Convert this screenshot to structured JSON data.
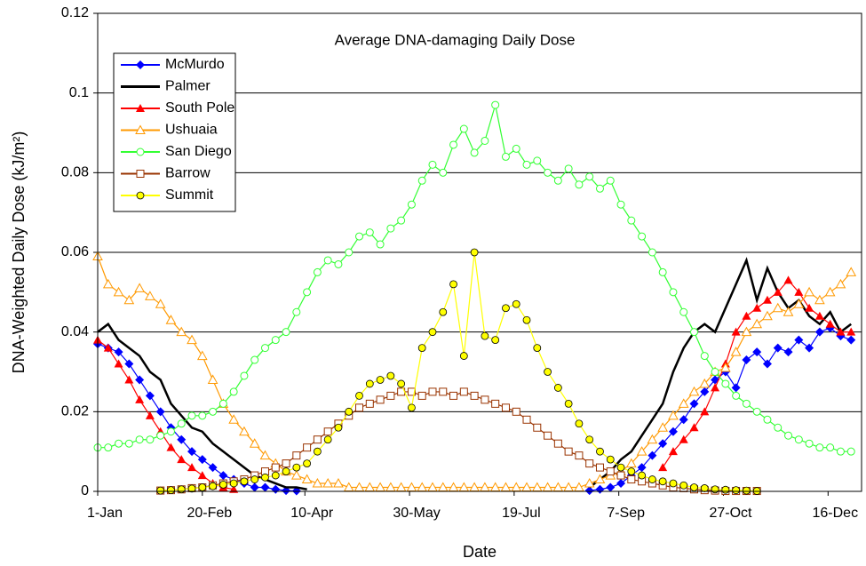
{
  "chart_data": {
    "type": "line",
    "title": "Average DNA-damaging Daily Dose",
    "x_label": "Date",
    "y_label": "DNA-Weighted Daily Dose (kJ/m²)",
    "x": [
      1,
      6,
      11,
      16,
      21,
      26,
      31,
      36,
      41,
      46,
      51,
      56,
      61,
      66,
      71,
      76,
      81,
      86,
      91,
      96,
      101,
      106,
      111,
      116,
      121,
      126,
      131,
      136,
      141,
      146,
      151,
      156,
      161,
      166,
      171,
      176,
      181,
      186,
      191,
      196,
      201,
      206,
      211,
      216,
      221,
      226,
      231,
      236,
      241,
      246,
      251,
      256,
      261,
      266,
      271,
      276,
      281,
      286,
      291,
      296,
      301,
      306,
      311,
      316,
      321,
      326,
      331,
      336,
      341,
      346,
      351,
      356,
      361
    ],
    "xlim": [
      1,
      366
    ],
    "xticks": [
      {
        "value": 1,
        "label": "1-Jan"
      },
      {
        "value": 51,
        "label": "20-Feb"
      },
      {
        "value": 100,
        "label": "10-Apr"
      },
      {
        "value": 150,
        "label": "30-May"
      },
      {
        "value": 200,
        "label": "19-Jul"
      },
      {
        "value": 250,
        "label": "7-Sep"
      },
      {
        "value": 300,
        "label": "27-Oct"
      },
      {
        "value": 350,
        "label": "16-Dec"
      }
    ],
    "ylim": [
      0,
      0.12
    ],
    "yticks": [
      0,
      0.02,
      0.04,
      0.06,
      0.08,
      0.1,
      0.12
    ],
    "grid": true,
    "legend": "upper left",
    "series": [
      {
        "name": "McMurdo",
        "color": "#0000ff",
        "marker": "diamond",
        "values": [
          0.037,
          0.036,
          0.035,
          0.032,
          0.028,
          0.024,
          0.02,
          0.016,
          0.013,
          0.01,
          0.008,
          0.006,
          0.004,
          0.003,
          0.002,
          0.001,
          0.001,
          0.0005,
          0.0002,
          0.0001,
          null,
          null,
          null,
          null,
          null,
          null,
          null,
          null,
          null,
          null,
          null,
          null,
          null,
          null,
          null,
          null,
          null,
          null,
          null,
          null,
          null,
          null,
          null,
          null,
          null,
          null,
          null,
          0.0002,
          0.0005,
          0.001,
          0.002,
          0.004,
          0.006,
          0.009,
          0.012,
          0.015,
          0.018,
          0.022,
          0.025,
          0.028,
          0.03,
          0.026,
          0.033,
          0.035,
          0.032,
          0.036,
          0.035,
          0.038,
          0.036,
          0.04,
          0.041,
          0.039,
          0.038
        ]
      },
      {
        "name": "Palmer",
        "color": "#000000",
        "marker": "none",
        "values": [
          0.04,
          0.042,
          0.038,
          0.036,
          0.034,
          0.03,
          0.028,
          0.022,
          0.019,
          0.016,
          0.015,
          0.012,
          0.01,
          0.008,
          0.006,
          0.004,
          0.003,
          0.002,
          0.001,
          0.001,
          0.0005,
          null,
          null,
          null,
          null,
          null,
          null,
          null,
          null,
          null,
          null,
          null,
          null,
          null,
          null,
          null,
          null,
          null,
          null,
          null,
          null,
          null,
          null,
          null,
          null,
          null,
          null,
          0.001,
          0.003,
          0.005,
          0.008,
          0.01,
          0.014,
          0.018,
          0.022,
          0.03,
          0.036,
          0.04,
          0.042,
          0.04,
          0.046,
          0.052,
          0.058,
          0.048,
          0.056,
          0.05,
          0.046,
          0.048,
          0.044,
          0.042,
          0.045,
          0.04,
          0.042
        ]
      },
      {
        "name": "South Pole",
        "color": "#ff0000",
        "marker": "triangle",
        "values": [
          0.038,
          0.036,
          0.032,
          0.028,
          0.023,
          0.019,
          0.015,
          0.011,
          0.008,
          0.006,
          0.004,
          0.002,
          0.001,
          0.0005,
          null,
          null,
          null,
          null,
          null,
          null,
          null,
          null,
          null,
          null,
          null,
          null,
          null,
          null,
          null,
          null,
          null,
          null,
          null,
          null,
          null,
          null,
          null,
          null,
          null,
          null,
          null,
          null,
          null,
          null,
          null,
          null,
          null,
          null,
          null,
          null,
          null,
          null,
          null,
          null,
          0.006,
          0.01,
          0.013,
          0.016,
          0.02,
          0.026,
          0.032,
          0.04,
          0.044,
          0.046,
          0.048,
          0.05,
          0.053,
          0.05,
          0.046,
          0.044,
          0.042,
          0.04,
          0.04
        ]
      },
      {
        "name": "Ushuaia",
        "color": "#ff9900",
        "marker": "open-triangle",
        "values": [
          0.059,
          0.052,
          0.05,
          0.048,
          0.051,
          0.049,
          0.047,
          0.043,
          0.04,
          0.038,
          0.034,
          0.028,
          0.022,
          0.018,
          0.015,
          0.012,
          0.009,
          0.007,
          0.005,
          0.004,
          0.003,
          0.002,
          0.002,
          0.002,
          0.001,
          0.001,
          0.001,
          0.001,
          0.001,
          0.001,
          0.001,
          0.001,
          0.001,
          0.001,
          0.001,
          0.001,
          0.001,
          0.001,
          0.001,
          0.001,
          0.001,
          0.001,
          0.001,
          0.001,
          0.001,
          0.001,
          0.001,
          0.002,
          0.003,
          0.004,
          0.005,
          0.007,
          0.01,
          0.013,
          0.016,
          0.019,
          0.022,
          0.025,
          0.027,
          0.03,
          0.031,
          0.035,
          0.04,
          0.042,
          0.044,
          0.046,
          0.045,
          0.047,
          0.05,
          0.048,
          0.05,
          0.052,
          0.055
        ]
      },
      {
        "name": "San Diego",
        "color": "#33ff33",
        "marker": "open-circle",
        "values": [
          0.011,
          0.011,
          0.012,
          0.012,
          0.013,
          0.013,
          0.014,
          0.015,
          0.017,
          0.019,
          0.019,
          0.02,
          0.022,
          0.025,
          0.029,
          0.033,
          0.036,
          0.038,
          0.04,
          0.045,
          0.05,
          0.055,
          0.058,
          0.057,
          0.06,
          0.064,
          0.065,
          0.062,
          0.066,
          0.068,
          0.072,
          0.078,
          0.082,
          0.08,
          0.087,
          0.091,
          0.085,
          0.088,
          0.097,
          0.084,
          0.086,
          0.082,
          0.083,
          0.08,
          0.078,
          0.081,
          0.077,
          0.079,
          0.076,
          0.078,
          0.072,
          0.068,
          0.064,
          0.06,
          0.055,
          0.05,
          0.045,
          0.04,
          0.034,
          0.03,
          0.027,
          0.024,
          0.022,
          0.02,
          0.018,
          0.016,
          0.014,
          0.013,
          0.012,
          0.011,
          0.011,
          0.01,
          0.01
        ]
      },
      {
        "name": "Barrow",
        "color": "#993300",
        "marker": "open-square",
        "values": [
          null,
          null,
          null,
          null,
          null,
          null,
          0.0002,
          0.0003,
          0.0005,
          0.0008,
          0.001,
          0.0015,
          0.002,
          0.0025,
          0.003,
          0.004,
          0.005,
          0.006,
          0.007,
          0.009,
          0.011,
          0.013,
          0.015,
          0.017,
          0.019,
          0.021,
          0.022,
          0.023,
          0.024,
          0.025,
          0.025,
          0.024,
          0.025,
          0.025,
          0.024,
          0.025,
          0.024,
          0.023,
          0.022,
          0.021,
          0.02,
          0.018,
          0.016,
          0.014,
          0.012,
          0.01,
          0.009,
          0.007,
          0.006,
          0.005,
          0.004,
          0.003,
          0.0025,
          0.002,
          0.0015,
          0.001,
          0.0008,
          0.0005,
          0.0003,
          0.0002,
          0.0001,
          0.0001,
          0.0001,
          0.0001,
          null,
          null,
          null,
          null,
          null,
          null,
          null,
          null,
          null
        ]
      },
      {
        "name": "Summit",
        "color": "#ffff00",
        "marker": "filled-circle",
        "values": [
          null,
          null,
          null,
          null,
          null,
          null,
          0.0002,
          0.0003,
          0.0005,
          0.0007,
          0.001,
          0.0013,
          0.0017,
          0.002,
          0.0025,
          0.003,
          0.0035,
          0.004,
          0.005,
          0.006,
          0.007,
          0.01,
          0.013,
          0.016,
          0.02,
          0.024,
          0.027,
          0.028,
          0.029,
          0.027,
          0.021,
          0.036,
          0.04,
          0.045,
          0.052,
          0.034,
          0.06,
          0.039,
          0.038,
          0.046,
          0.047,
          0.043,
          0.036,
          0.03,
          0.026,
          0.022,
          0.017,
          0.013,
          0.01,
          0.008,
          0.006,
          0.005,
          0.004,
          0.003,
          0.0025,
          0.002,
          0.0015,
          0.001,
          0.0008,
          0.0005,
          0.0004,
          0.0003,
          0.0002,
          0.0001,
          null,
          null,
          null,
          null,
          null,
          null,
          null,
          null,
          null
        ]
      }
    ]
  }
}
